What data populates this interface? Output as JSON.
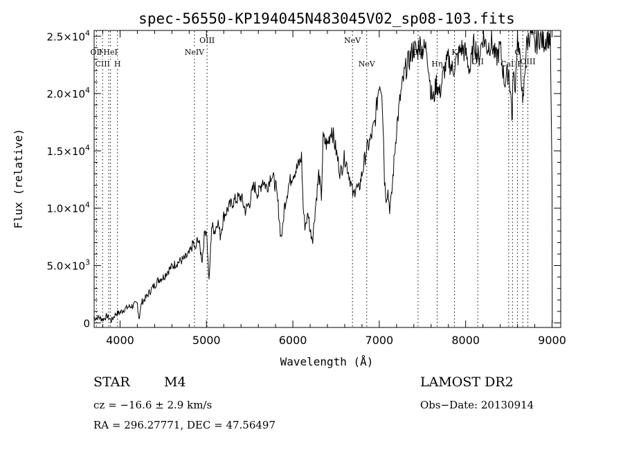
{
  "chart_data": {
    "type": "line",
    "title": "spec-56550-KP194045N483045V02_sp08-103.fits",
    "xlabel": "Wavelength (Å)",
    "ylabel": "Flux (relative)",
    "xlim": [
      3700,
      9100
    ],
    "ylim": [
      -400,
      25500
    ],
    "x_ticks": [
      4000,
      5000,
      6000,
      7000,
      8000,
      9000
    ],
    "x_tick_labels": [
      "4000",
      "5000",
      "6000",
      "7000",
      "8000",
      "9000"
    ],
    "y_ticks": [
      0,
      5000,
      10000,
      15000,
      20000,
      25000
    ],
    "y_tick_labels": [
      {
        "mant": "0",
        "exp": ""
      },
      {
        "mant": "5.0×10",
        "exp": "3"
      },
      {
        "mant": "1.0×10",
        "exp": "4"
      },
      {
        "mant": "1.5×10",
        "exp": "4"
      },
      {
        "mant": "2.0×10",
        "exp": "4"
      },
      {
        "mant": "2.5×10",
        "exp": "4"
      }
    ],
    "grid": false,
    "series": [
      {
        "x": [
          3700,
          3750,
          3800,
          3850,
          3900,
          3950,
          4000,
          4050,
          4100,
          4150,
          4200,
          4220,
          4250,
          4300,
          4350,
          4400,
          4450,
          4500,
          4550,
          4600,
          4650,
          4700,
          4750,
          4800,
          4850,
          4870,
          4900,
          4950,
          4980,
          5000,
          5030,
          5060,
          5100,
          5130,
          5160,
          5200,
          5250,
          5300,
          5350,
          5400,
          5450,
          5500,
          5550,
          5600,
          5650,
          5700,
          5750,
          5800,
          5830,
          5860,
          5880,
          5900,
          5950,
          6000,
          6050,
          6080,
          6100,
          6120,
          6140,
          6160,
          6180,
          6200,
          6230,
          6260,
          6300,
          6330,
          6350,
          6400,
          6450,
          6500,
          6550,
          6600,
          6650,
          6700,
          6730,
          6760,
          6800,
          6850,
          6900,
          6950,
          7000,
          7030,
          7050,
          7060,
          7080,
          7100,
          7120,
          7140,
          7170,
          7200,
          7250,
          7300,
          7350,
          7400,
          7440,
          7460,
          7500,
          7550,
          7600,
          7630,
          7660,
          7700,
          7750,
          7800,
          7850,
          7900,
          7950,
          8000,
          8050,
          8100,
          8150,
          8200,
          8250,
          8300,
          8350,
          8400,
          8450,
          8500,
          8530,
          8540,
          8550,
          8570,
          8600,
          8650,
          8660,
          8700,
          8750,
          8800,
          8850,
          8900,
          8950,
          8980,
          9000
        ],
        "y": [
          400,
          500,
          300,
          600,
          200,
          800,
          900,
          1200,
          1400,
          1500,
          1700,
          400,
          1800,
          2200,
          2800,
          3300,
          3800,
          4000,
          4500,
          4900,
          5200,
          5400,
          5600,
          6000,
          7000,
          6200,
          7500,
          5500,
          8000,
          8200,
          3500,
          8500,
          8000,
          9000,
          7600,
          9300,
          10000,
          10500,
          10800,
          11000,
          9800,
          10500,
          12000,
          11200,
          12500,
          11800,
          13000,
          12000,
          10200,
          7500,
          8000,
          10000,
          12000,
          13000,
          13500,
          14000,
          14500,
          10000,
          8500,
          9000,
          9500,
          8000,
          7400,
          10000,
          13000,
          11000,
          16000,
          15500,
          17000,
          15000,
          13000,
          14500,
          13000,
          11000,
          12000,
          11500,
          13000,
          15000,
          16000,
          17500,
          21000,
          20500,
          16000,
          12500,
          11000,
          11500,
          10000,
          10800,
          14000,
          17000,
          20000,
          22000,
          23000,
          24000,
          23500,
          24500,
          23800,
          24000,
          20000,
          19500,
          21000,
          20000,
          22000,
          23000,
          22000,
          23000,
          24000,
          23500,
          22000,
          24500,
          23000,
          25000,
          24000,
          24500,
          23000,
          24000,
          21000,
          22000,
          19000,
          17500,
          22500,
          20000,
          25000,
          21000,
          18500,
          24000,
          25500,
          24000,
          25000,
          24500,
          25000,
          24800,
          12000
        ]
      }
    ],
    "line_markers": [
      {
        "x": 3727,
        "label": "OII",
        "row": 1
      },
      {
        "x": 3869,
        "label": "NeIII",
        "row": 1
      },
      {
        "x": 3889,
        "label": "HeI",
        "row": 1
      },
      {
        "x": 3798,
        "label": "CIII",
        "row": 2
      },
      {
        "x": 3970,
        "label": "H",
        "row": 2
      },
      {
        "x": 5007,
        "label": "OIII",
        "row": 0
      },
      {
        "x": 4861,
        "label": "NeIV",
        "row": 1
      },
      {
        "x": 6690,
        "label": "NeV",
        "row": 0
      },
      {
        "x": 6855,
        "label": "NeV",
        "row": 2
      },
      {
        "x": 7449,
        "label": "OII",
        "row": 1
      },
      {
        "x": 7670,
        "label": "Hη",
        "row": 2
      },
      {
        "x": 7870,
        "label": "K",
        "row": 1
      },
      {
        "x": 8140,
        "label": "OII",
        "row": 1.8
      },
      {
        "x": 8498,
        "label": "CaII",
        "row": 2
      },
      {
        "x": 8542,
        "label": "",
        "row": 2
      },
      {
        "x": 8600,
        "label": "G",
        "row": 1
      },
      {
        "x": 8662,
        "label": "Hγ",
        "row": 2
      },
      {
        "x": 8720,
        "label": "OIII",
        "row": 1.8
      }
    ]
  },
  "info": {
    "class_label": "STAR",
    "subclass": "M4",
    "survey": "LAMOST DR2",
    "cz": "cz = −16.6 ± 2.9 km/s",
    "obs_date": "Obs−Date: 20130914",
    "radec": "RA = 296.27771, DEC =  47.56497"
  }
}
